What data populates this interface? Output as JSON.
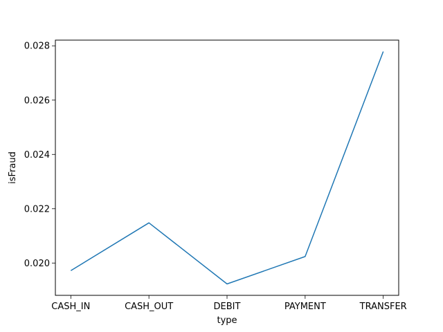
{
  "chart_data": {
    "type": "line",
    "categories": [
      "CASH_IN",
      "CASH_OUT",
      "DEBIT",
      "PAYMENT",
      "TRANSFER"
    ],
    "values": [
      0.01972,
      0.02148,
      0.01923,
      0.02024,
      0.02779
    ],
    "xlabel": "type",
    "ylabel": "isFraud",
    "ylim": [
      0.01881,
      0.02821
    ],
    "yticks": [
      0.02,
      0.022,
      0.024,
      0.026,
      0.028
    ],
    "ytick_labels": [
      "0.020",
      "0.022",
      "0.024",
      "0.026",
      "0.028"
    ],
    "grid": false,
    "legend": "none",
    "line_color": "#1f77b4"
  }
}
